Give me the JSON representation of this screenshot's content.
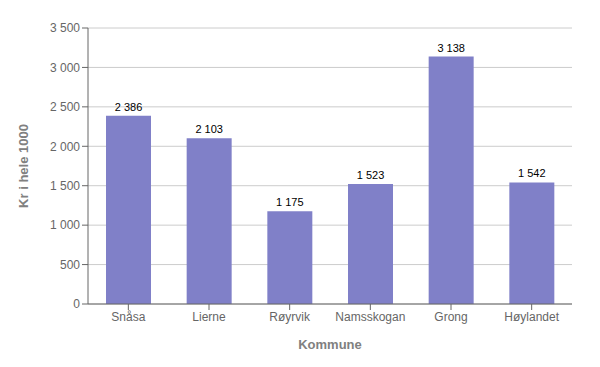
{
  "chart_data": {
    "type": "bar",
    "categories": [
      "Snåsa",
      "Lierne",
      "Røyrvik",
      "Namsskogan",
      "Grong",
      "Høylandet"
    ],
    "values": [
      2386,
      2103,
      1175,
      1523,
      3138,
      1542
    ],
    "value_labels": [
      "2 386",
      "2 103",
      "1 175",
      "1 523",
      "3 138",
      "1 542"
    ],
    "data_labels": true,
    "color": "#8080c8",
    "xlabel": "Kommune",
    "ylabel": "Kr i hele 1000",
    "ylim": [
      0,
      3500
    ],
    "yticks": [
      0,
      500,
      {
        "value": 1000,
        "label": "1 000"
      },
      {
        "value": 1500,
        "label": "1 500"
      },
      {
        "value": 2000,
        "label": "2 000"
      },
      {
        "value": 2500,
        "label": "2 500"
      },
      {
        "value": 3000,
        "label": "3 000"
      },
      {
        "value": 3500,
        "label": "3 500"
      }
    ],
    "grid": true
  }
}
